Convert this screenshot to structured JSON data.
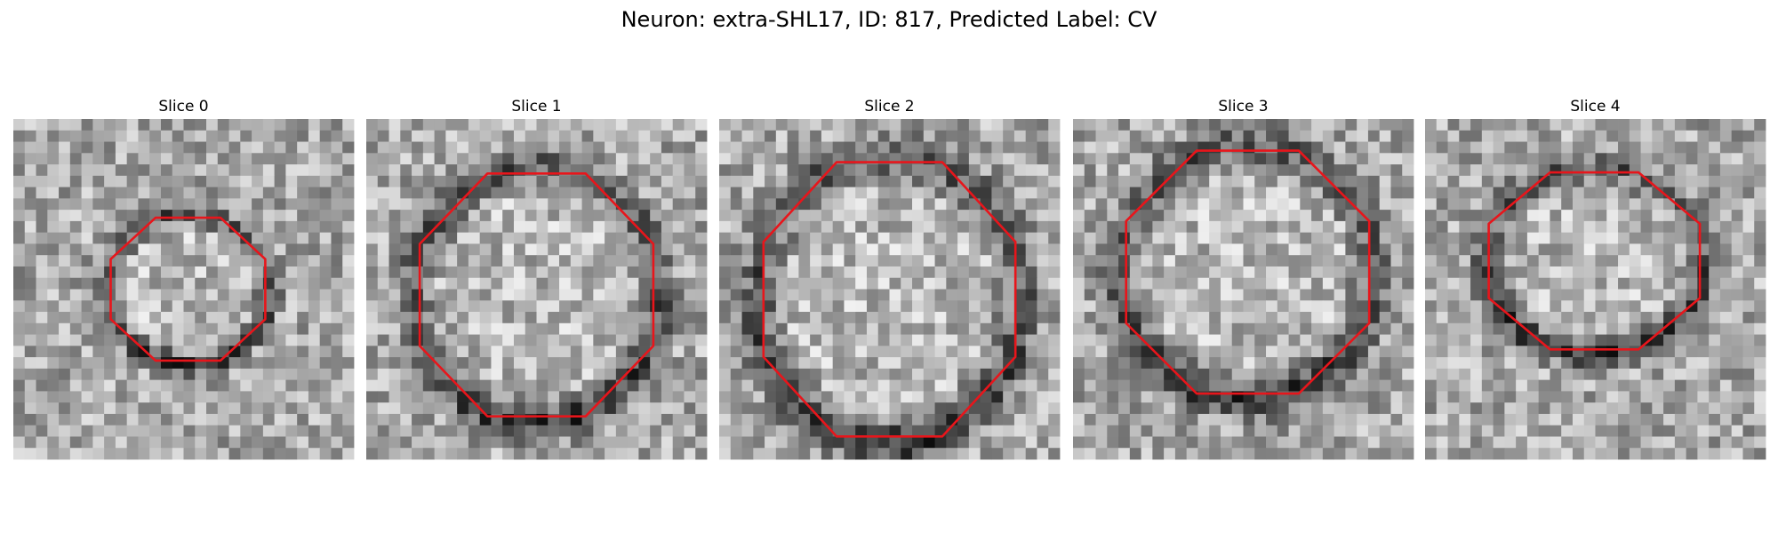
{
  "title": "Neuron: extra-SHL17, ID: 817, Predicted Label: CV",
  "slices": [
    {
      "title": "Slice 0"
    },
    {
      "title": "Slice 1"
    },
    {
      "title": "Slice 2"
    },
    {
      "title": "Slice 3"
    },
    {
      "title": "Slice 4"
    }
  ]
}
